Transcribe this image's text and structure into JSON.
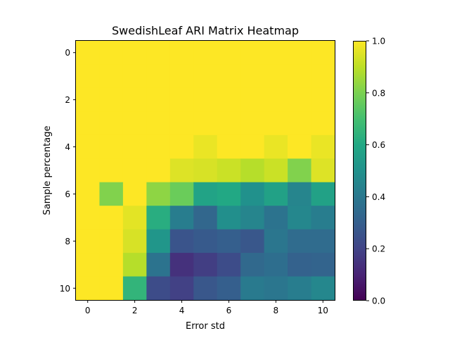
{
  "chart_data": {
    "type": "heatmap",
    "title": "SwedishLeaf ARI Matrix Heatmap",
    "xlabel": "Error std",
    "ylabel": "Sample percentage",
    "x_ticks": [
      "0",
      "2",
      "4",
      "6",
      "8",
      "10"
    ],
    "y_ticks": [
      "0",
      "2",
      "4",
      "6",
      "8",
      "10"
    ],
    "colorbar": {
      "range": [
        0.0,
        1.0
      ],
      "ticks": [
        "0.0",
        "0.2",
        "0.4",
        "0.6",
        "0.8",
        "1.0"
      ],
      "colormap": "viridis"
    },
    "rows": 11,
    "cols": 11,
    "values": [
      [
        1.0,
        1.0,
        1.0,
        1.0,
        1.0,
        1.0,
        1.0,
        1.0,
        1.0,
        1.0,
        1.0
      ],
      [
        1.0,
        1.0,
        1.0,
        1.0,
        1.0,
        1.0,
        1.0,
        1.0,
        1.0,
        1.0,
        1.0
      ],
      [
        1.0,
        1.0,
        1.0,
        1.0,
        1.0,
        1.0,
        1.0,
        1.0,
        1.0,
        1.0,
        1.0
      ],
      [
        1.0,
        1.0,
        1.0,
        1.0,
        1.0,
        1.0,
        1.0,
        1.0,
        1.0,
        1.0,
        1.0
      ],
      [
        1.0,
        1.0,
        1.0,
        1.0,
        1.0,
        0.97,
        1.0,
        1.0,
        0.97,
        1.0,
        0.97
      ],
      [
        1.0,
        1.0,
        1.0,
        1.0,
        0.95,
        0.94,
        0.92,
        0.89,
        0.92,
        0.81,
        0.95
      ],
      [
        1.0,
        0.81,
        1.0,
        0.83,
        0.77,
        0.58,
        0.6,
        0.5,
        0.57,
        0.45,
        0.57
      ],
      [
        1.0,
        1.0,
        0.96,
        0.62,
        0.42,
        0.33,
        0.49,
        0.45,
        0.38,
        0.46,
        0.42
      ],
      [
        1.0,
        1.0,
        0.94,
        0.52,
        0.26,
        0.28,
        0.3,
        0.27,
        0.39,
        0.35,
        0.35
      ],
      [
        1.0,
        1.0,
        0.89,
        0.38,
        0.14,
        0.18,
        0.23,
        0.34,
        0.36,
        0.31,
        0.32
      ],
      [
        1.0,
        1.0,
        0.65,
        0.23,
        0.19,
        0.27,
        0.3,
        0.41,
        0.39,
        0.42,
        0.46
      ]
    ]
  }
}
